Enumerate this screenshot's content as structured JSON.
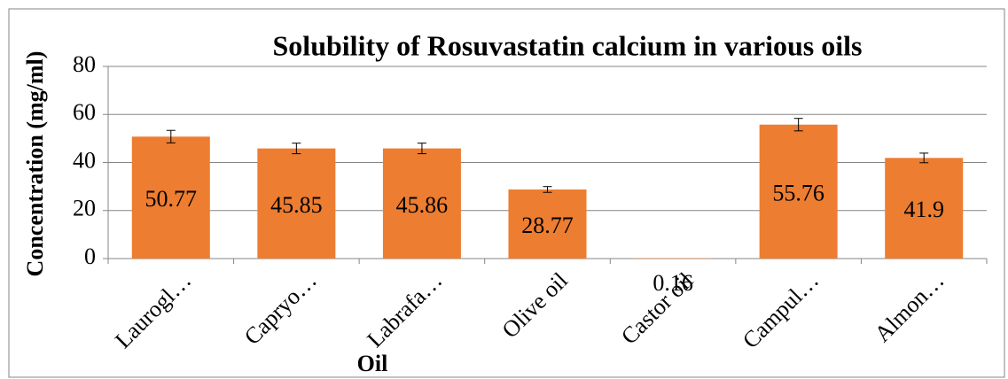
{
  "chart_data": {
    "type": "bar",
    "title": "Solubility of Rosuvastatin calcium in various oils",
    "x_label": "Oil",
    "y_label": "Concentration (mg/ml)",
    "categories": [
      "Laurogl…",
      "Capryo…",
      "Labrafa…",
      "Olive oil",
      "Castor oil",
      "Campul…",
      "Almon…"
    ],
    "values": [
      50.77,
      45.85,
      45.86,
      28.77,
      0.16,
      55.76,
      41.9
    ],
    "errors": [
      2.6,
      2.2,
      2.2,
      1.2,
      0,
      2.6,
      2
    ],
    "color": "#ed7d31",
    "ylim": [
      0,
      80
    ],
    "yticks": [
      0,
      20,
      40,
      60,
      80
    ],
    "grid": true
  }
}
